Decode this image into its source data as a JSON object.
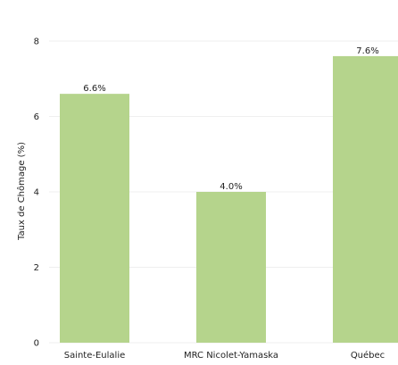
{
  "chart_data": {
    "type": "bar",
    "title": "",
    "xlabel": "",
    "ylabel": "Taux de Chômage (%)",
    "ylim": [
      0,
      8
    ],
    "yticks": [
      "0",
      "2",
      "4",
      "6",
      "8"
    ],
    "categories": [
      "Sainte-Eulalie",
      "MRC Nicolet-Yamaska",
      "Québec"
    ],
    "values": [
      6.6,
      4.0,
      7.6
    ],
    "data_labels": [
      "6.6%",
      "4.0%",
      "7.6%"
    ],
    "bar_color": "#b5d48c",
    "grid": true,
    "legend": "none"
  }
}
